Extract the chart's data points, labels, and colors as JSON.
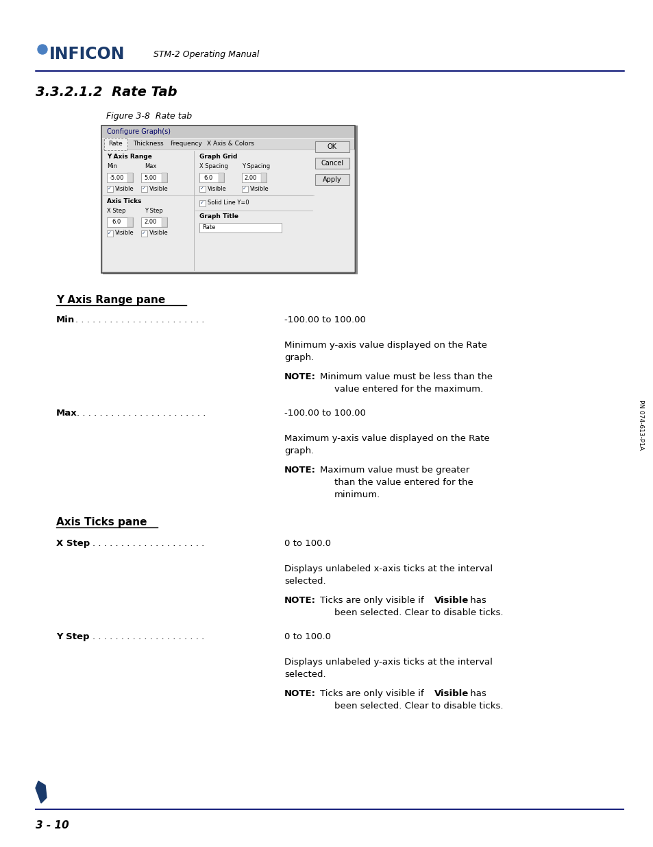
{
  "page_bg": "#ffffff",
  "header_line_color": "#1a237e",
  "footer_line_color": "#1a237e",
  "logo_text": "INFICON",
  "header_subtitle": "STM-2 Operating Manual",
  "section_title": "3.3.2.1.2  Rate Tab",
  "figure_caption": "Figure 3-8  Rate tab",
  "page_number": "3 - 10",
  "sidebar_text": "PN 074-613-P1A",
  "dots": ". . . . . . . . . . . . . . . . . . . . . . .",
  "dots_short": ". . . . . . . . . . . . . . . . . . ."
}
